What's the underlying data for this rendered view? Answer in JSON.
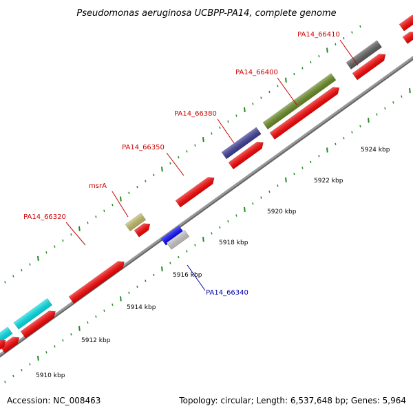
{
  "title": "Pseudomonas aeruginosa UCBPP-PA14, complete genome",
  "footer": {
    "accession": "Accession: NC_008463",
    "summary": "Topology: circular; Length: 6,537,648 bp; Genes: 5,964"
  },
  "colors": {
    "forward_red": "#ff0000",
    "reverse_red": "#ff0000",
    "backbone": "#999999",
    "tick": "#228b22",
    "label_red": "#cc0000",
    "label_blue": "#0000aa"
  },
  "scale_ticks": [
    {
      "label": "5910 kbp"
    },
    {
      "label": "5912 kbp"
    },
    {
      "label": "5914 kbp"
    },
    {
      "label": "5916 kbp"
    },
    {
      "label": "5918 kbp"
    },
    {
      "label": "5920 kbp"
    },
    {
      "label": "5922 kbp"
    },
    {
      "label": "5924 kbp"
    }
  ],
  "gene_labels": [
    {
      "name": "PA14_66320",
      "color": "#cc0000"
    },
    {
      "name": "msrA",
      "color": "#cc0000"
    },
    {
      "name": "PA14_66350",
      "color": "#cc0000"
    },
    {
      "name": "PA14_66380",
      "color": "#cc0000"
    },
    {
      "name": "PA14_66400",
      "color": "#cc0000"
    },
    {
      "name": "PA14_66410",
      "color": "#cc0000"
    },
    {
      "name": "PA14_66340",
      "color": "#0000aa"
    }
  ],
  "features": [
    {
      "color": "#00e5ee"
    },
    {
      "color": "#00e5ee"
    },
    {
      "color": "#ff0000"
    },
    {
      "color": "#c8bf6a"
    },
    {
      "color": "#ff0000"
    },
    {
      "color": "#3c3c9a"
    },
    {
      "color": "#6b8e23"
    },
    {
      "color": "#5f5f5f"
    },
    {
      "color": "#ff0000"
    },
    {
      "color": "#ff0000"
    },
    {
      "color": "#ff0000"
    },
    {
      "color": "#ff0000"
    },
    {
      "color": "#ff0000"
    },
    {
      "color": "#ff0000"
    },
    {
      "color": "#ff0000"
    },
    {
      "color": "#ff0000"
    },
    {
      "color": "#ff0000"
    },
    {
      "color": "#0000ff"
    },
    {
      "color": "#cccccc"
    }
  ]
}
